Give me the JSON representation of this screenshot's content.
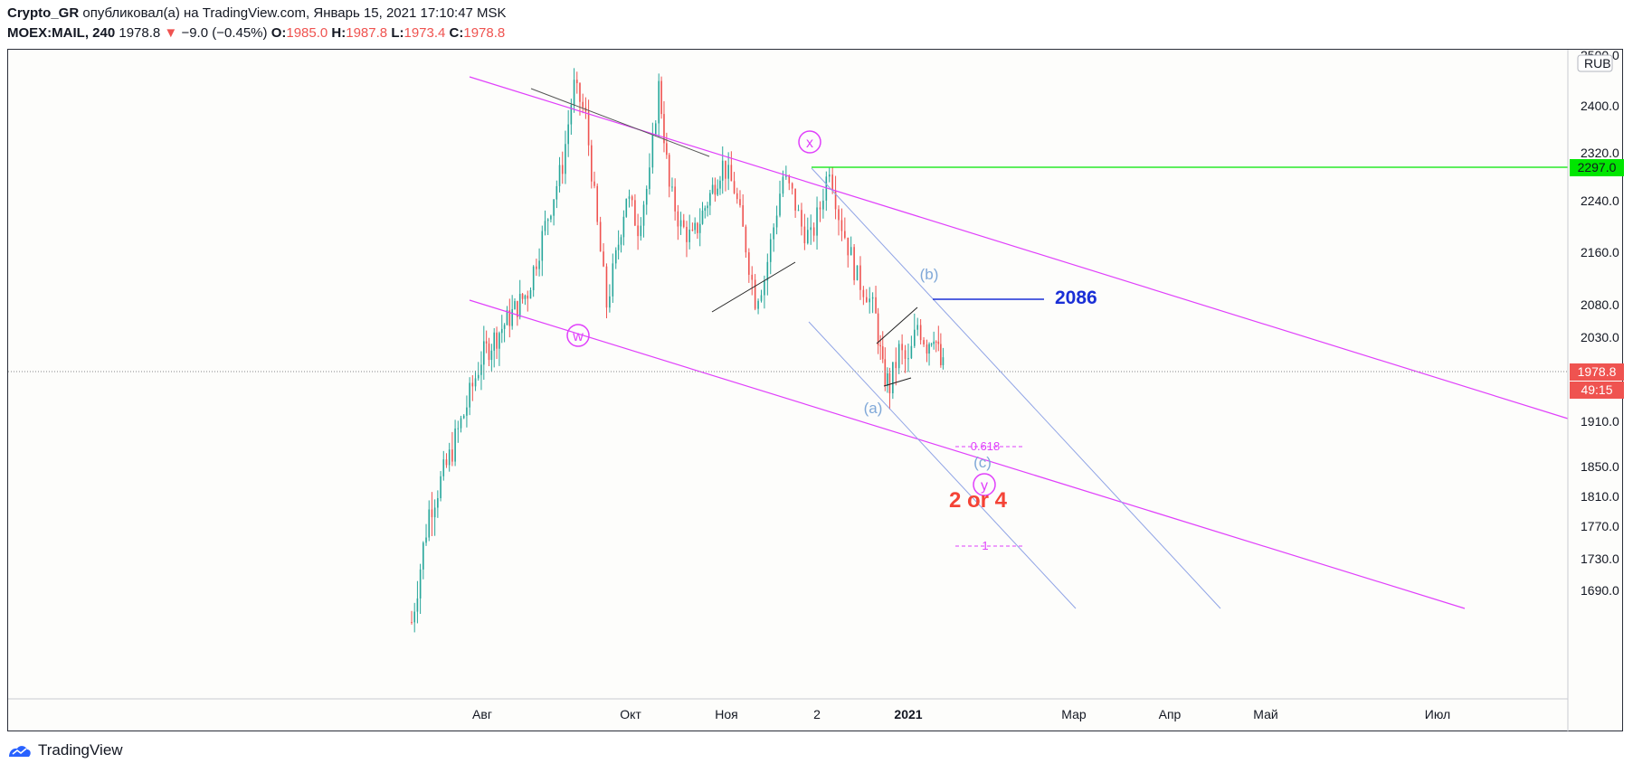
{
  "header": {
    "author": "Crypto_GR",
    "published": "опубликовал(а) на TradingView.com, Январь 15, 2021 17:10:47 MSK",
    "symbol": "MOEX:MAIL, 240",
    "last": "1978.8",
    "change_arrow": "▼",
    "change": "−9.0 (−0.45%)",
    "o_label": "O:",
    "o": "1985.0",
    "h_label": "H:",
    "h": "1987.8",
    "l_label": "L:",
    "l": "1973.4",
    "c_label": "C:",
    "c": "1978.8"
  },
  "footer": {
    "brand": "TradingView",
    "logo_icon": "tradingview-logo-icon"
  },
  "colors": {
    "up": "#26a69a",
    "down": "#ef5350",
    "magenta": "#e040fb",
    "lightblue": "#90a4e6",
    "green": "#00e600",
    "blue": "#1a2fd6",
    "red": "#f44336",
    "waveblue": "#7fa8d8"
  },
  "chart_data": {
    "type": "candlestick",
    "currency": "RUB",
    "y_ticks": [
      "2500.0",
      "2400.0",
      "2320.0",
      "2240.0",
      "2160.0",
      "2080.0",
      "2030.0",
      "1910.0",
      "1850.0",
      "1810.0",
      "1770.0",
      "1730.0",
      "1690.0"
    ],
    "x_ticks": [
      "Авг",
      "Окт",
      "Ноя",
      "2",
      "2021",
      "Мар",
      "Апр",
      "Май",
      "Июл"
    ],
    "price_labels": {
      "level": "2297.0",
      "last": "1978.8",
      "timer": "49:15"
    },
    "annotations": {
      "level_text": "2086",
      "target_text": "2 or 4",
      "fib_0618": "0.618",
      "fib_1": "1",
      "waves": {
        "w": "w",
        "x": "x",
        "y": "y",
        "a": "(a)",
        "b": "(b)",
        "c": "(c)"
      }
    },
    "price_path": [
      [
        1990,
        1650
      ],
      [
        2005,
        1790
      ],
      [
        2020,
        1850
      ],
      [
        2035,
        1920
      ],
      [
        2050,
        2000
      ],
      [
        2070,
        2050
      ],
      [
        2090,
        2100
      ],
      [
        2105,
        2200
      ],
      [
        2120,
        2300
      ],
      [
        2130,
        2440
      ],
      [
        2140,
        2380
      ],
      [
        2150,
        2200
      ],
      [
        2158,
        2080
      ],
      [
        2166,
        2150
      ],
      [
        2175,
        2250
      ],
      [
        2185,
        2200
      ],
      [
        2195,
        2280
      ],
      [
        2203,
        2440
      ],
      [
        2212,
        2260
      ],
      [
        2222,
        2200
      ],
      [
        2232,
        2180
      ],
      [
        2245,
        2240
      ],
      [
        2258,
        2300
      ],
      [
        2268,
        2260
      ],
      [
        2278,
        2170
      ],
      [
        2286,
        2090
      ],
      [
        2294,
        2120
      ],
      [
        2302,
        2200
      ],
      [
        2310,
        2280
      ],
      [
        2318,
        2250
      ],
      [
        2326,
        2200
      ],
      [
        2334,
        2180
      ],
      [
        2342,
        2230
      ],
      [
        2350,
        2300
      ],
      [
        2358,
        2220
      ],
      [
        2366,
        2170
      ],
      [
        2374,
        2120
      ],
      [
        2382,
        2100
      ],
      [
        2390,
        2060
      ],
      [
        2396,
        1980
      ],
      [
        2402,
        1960
      ],
      [
        2410,
        2010
      ],
      [
        2418,
        1990
      ],
      [
        2426,
        2050
      ],
      [
        2434,
        2020
      ],
      [
        2440,
        2040
      ],
      [
        2446,
        1990
      ],
      [
        2450,
        1980
      ]
    ]
  }
}
